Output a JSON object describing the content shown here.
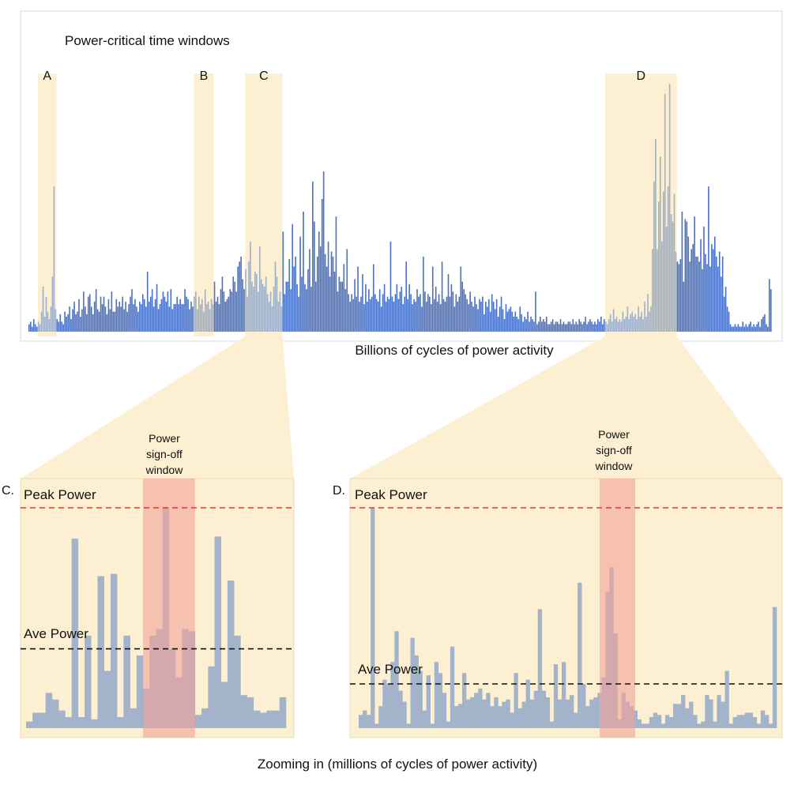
{
  "colors": {
    "bar": "#4a72c4",
    "highlight_fill": "#fdf0d2",
    "highlight_bar": "#9fb0c8",
    "zoom_bar": "#a3b4ca",
    "signoff": "#f4a29a",
    "peak_line": "#e8342c",
    "ave_line": "#111111",
    "frame": "#d9d9d9"
  },
  "chart_data": [
    {
      "type": "bar",
      "title": "Power-critical time windows",
      "xlabel": "Billions of cycles of power activity",
      "ylabel": "",
      "ylim": [
        0,
        100
      ],
      "bin_count": 460,
      "values_description": "power per bin, 0-100 relative scale",
      "values": [
        3,
        4,
        2,
        5,
        3,
        2,
        4,
        3,
        8,
        18,
        6,
        14,
        8,
        5,
        10,
        22,
        58,
        9,
        5,
        4,
        7,
        4,
        3,
        8,
        6,
        7,
        10,
        5,
        9,
        12,
        7,
        8,
        13,
        6,
        9,
        16,
        10,
        7,
        14,
        15,
        10,
        7,
        12,
        17,
        9,
        8,
        14,
        11,
        14,
        10,
        7,
        13,
        9,
        16,
        8,
        8,
        13,
        10,
        12,
        10,
        14,
        9,
        12,
        8,
        11,
        14,
        17,
        11,
        13,
        10,
        8,
        12,
        11,
        15,
        13,
        10,
        24,
        12,
        14,
        17,
        10,
        13,
        19,
        9,
        11,
        13,
        16,
        14,
        12,
        16,
        10,
        17,
        9,
        11,
        11,
        14,
        11,
        13,
        11,
        11,
        17,
        14,
        13,
        9,
        12,
        10,
        14,
        16,
        9,
        14,
        11,
        13,
        8,
        17,
        11,
        12,
        9,
        13,
        11,
        20,
        12,
        14,
        11,
        17,
        22,
        16,
        12,
        13,
        14,
        17,
        16,
        22,
        20,
        16,
        26,
        28,
        30,
        21,
        17,
        25,
        14,
        28,
        36,
        20,
        18,
        24,
        23,
        16,
        34,
        21,
        19,
        18,
        22,
        15,
        12,
        16,
        10,
        18,
        28,
        22,
        12,
        16,
        10,
        40,
        15,
        20,
        20,
        29,
        17,
        43,
        26,
        30,
        19,
        14,
        38,
        22,
        48,
        19,
        17,
        25,
        33,
        18,
        60,
        44,
        20,
        30,
        40,
        34,
        53,
        64,
        31,
        26,
        36,
        22,
        32,
        30,
        24,
        46,
        16,
        22,
        20,
        20,
        27,
        17,
        33,
        15,
        12,
        15,
        13,
        21,
        14,
        26,
        12,
        14,
        23,
        11,
        19,
        12,
        17,
        13,
        14,
        27,
        15,
        13,
        12,
        17,
        10,
        15,
        19,
        12,
        14,
        13,
        36,
        14,
        12,
        15,
        19,
        13,
        16,
        18,
        11,
        14,
        28,
        13,
        19,
        15,
        11,
        13,
        12,
        17,
        14,
        15,
        10,
        30,
        16,
        12,
        15,
        14,
        11,
        26,
        13,
        18,
        12,
        15,
        11,
        28,
        13,
        12,
        14,
        23,
        14,
        19,
        16,
        10,
        15,
        12,
        14,
        26,
        20,
        17,
        15,
        13,
        11,
        16,
        12,
        10,
        14,
        11,
        9,
        13,
        12,
        14,
        7,
        12,
        10,
        13,
        8,
        15,
        12,
        9,
        13,
        6,
        10,
        14,
        9,
        5,
        11,
        8,
        9,
        10,
        8,
        6,
        8,
        6,
        5,
        10,
        7,
        4,
        6,
        5,
        8,
        4,
        6,
        5,
        4,
        16,
        3,
        4,
        6,
        4,
        5,
        4,
        6,
        3,
        3,
        4,
        5,
        3,
        4,
        4,
        3,
        5,
        3,
        4,
        3,
        3,
        4,
        4,
        3,
        5,
        3,
        4,
        3,
        5,
        4,
        3,
        4,
        6,
        3,
        4,
        5,
        4,
        3,
        4,
        3,
        5,
        4,
        6,
        3,
        5,
        4,
        3,
        5,
        7,
        4,
        9,
        5,
        6,
        4,
        5,
        4,
        8,
        5,
        6,
        10,
        5,
        7,
        8,
        6,
        7,
        5,
        10,
        6,
        8,
        5,
        12,
        6,
        15,
        8,
        10,
        33,
        60,
        77,
        33,
        52,
        70,
        36,
        56,
        95,
        42,
        58,
        99,
        47,
        44,
        55,
        32,
        28,
        27,
        29,
        48,
        20,
        45,
        44,
        38,
        28,
        33,
        35,
        46,
        30,
        30,
        28,
        37,
        25,
        42,
        31,
        27,
        58,
        26,
        35,
        33,
        38,
        30,
        26,
        32,
        22,
        30,
        14,
        18,
        10,
        8,
        3,
        2,
        2,
        3,
        2,
        3,
        2,
        2,
        4,
        2,
        3,
        2,
        3,
        4,
        2,
        3,
        2,
        3,
        4,
        2,
        5,
        6,
        7,
        3,
        2,
        21,
        17
      ]
    },
    {
      "type": "bar",
      "panel": "C.",
      "xlabel": "",
      "ylabel": "",
      "ylim": [
        0,
        100
      ],
      "values": [
        3,
        7,
        7,
        16,
        13,
        8,
        5,
        86,
        5,
        42,
        4,
        69,
        26,
        70,
        5,
        42,
        9,
        33,
        18,
        42,
        45,
        100,
        36,
        23,
        45,
        44,
        6,
        9,
        28,
        87,
        21,
        67,
        42,
        15,
        14,
        8,
        7,
        8,
        8,
        14
      ],
      "reference_lines": [
        {
          "label": "Peak Power",
          "value": 100
        },
        {
          "label": "Ave Power",
          "value": 36
        }
      ],
      "highlight_window": {
        "label": "Power sign-off window",
        "start_index": 18,
        "end_index": 25
      }
    },
    {
      "type": "bar",
      "panel": "D.",
      "xlabel": "",
      "ylabel": "",
      "ylim": [
        0,
        100
      ],
      "values": [
        6,
        8,
        6,
        100,
        2,
        10,
        22,
        20,
        30,
        44,
        17,
        12,
        2,
        41,
        33,
        26,
        8,
        24,
        2,
        30,
        25,
        16,
        3,
        37,
        10,
        11,
        25,
        13,
        14,
        16,
        18,
        13,
        16,
        10,
        14,
        10,
        12,
        13,
        7,
        25,
        9,
        12,
        22,
        13,
        17,
        54,
        17,
        14,
        3,
        29,
        13,
        30,
        13,
        15,
        7,
        66,
        20,
        10,
        13,
        14,
        16,
        23,
        62,
        73,
        43,
        4,
        16,
        12,
        10,
        8,
        4,
        2,
        2,
        5,
        7,
        6,
        2,
        6,
        5,
        11,
        11,
        15,
        9,
        12,
        6,
        2,
        3,
        15,
        13,
        3,
        15,
        12,
        26,
        2,
        5,
        6,
        6,
        7,
        7,
        5,
        2,
        8,
        6,
        2,
        55
      ]
    }
  ],
  "top_panel": {
    "windows": [
      {
        "label": "A",
        "start_bin": 6,
        "end_bin": 17
      },
      {
        "label": "B",
        "start_bin": 106,
        "end_bin": 118
      },
      {
        "label": "C",
        "start_bin": 139,
        "end_bin": 162
      },
      {
        "label": "D",
        "start_bin": 370,
        "end_bin": 415
      }
    ]
  },
  "panel_c": {
    "label": "C.",
    "peak_label": "Peak Power",
    "ave_label": "Ave Power",
    "signoff_lines": [
      "Power",
      "sign-off",
      "window"
    ]
  },
  "panel_d": {
    "label": "D.",
    "peak_label": "Peak Power",
    "ave_label": "Ave Power",
    "signoff_lines": [
      "Power",
      "sign-off",
      "window"
    ]
  },
  "caption": "Zooming in (millions of cycles of power activity)"
}
